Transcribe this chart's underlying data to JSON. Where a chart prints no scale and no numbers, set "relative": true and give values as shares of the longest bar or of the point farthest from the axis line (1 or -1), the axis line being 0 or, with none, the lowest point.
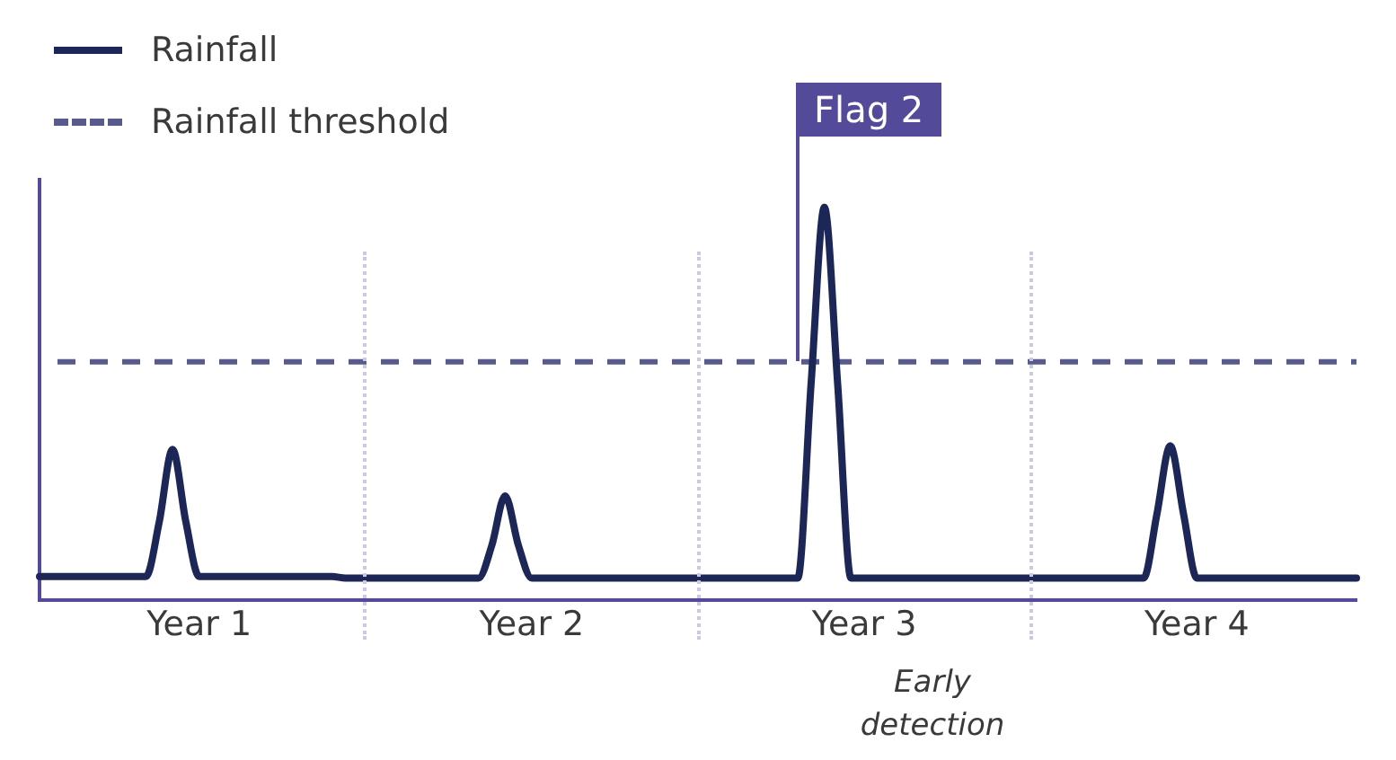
{
  "chart_data": {
    "type": "line",
    "relative": true,
    "legend": "top left",
    "categories": [
      null,
      null,
      null,
      null,
      null,
      null,
      null,
      null,
      null,
      null,
      null,
      null,
      "Year 1",
      null,
      null,
      null,
      null,
      null,
      null,
      null,
      null,
      null,
      null,
      null,
      null,
      null,
      null,
      null,
      null,
      null,
      null,
      null,
      null,
      null,
      null,
      null,
      null,
      "Year 2",
      null,
      null,
      null,
      null,
      null,
      null,
      null,
      null,
      null,
      null,
      null,
      null,
      null,
      null,
      null,
      null,
      null,
      null,
      null,
      null,
      null,
      null,
      null,
      null,
      "Year 3",
      null,
      null,
      null,
      null,
      null,
      null,
      null,
      null,
      null,
      null,
      null,
      null,
      null,
      null,
      null,
      null,
      null,
      null,
      null,
      null,
      null,
      null,
      null,
      null,
      "Year 4",
      null,
      null,
      null,
      null,
      null,
      null,
      null,
      null,
      null,
      null,
      null,
      null
    ],
    "series": [
      {
        "name": "Rainfall",
        "color": "#1c2757",
        "values": [
          0.061,
          0.061,
          0.061,
          0.061,
          0.061,
          0.061,
          0.061,
          0.061,
          0.061,
          0.2,
          0.384,
          0.2,
          0.061,
          0.061,
          0.061,
          0.061,
          0.061,
          0.061,
          0.061,
          0.061,
          0.061,
          0.061,
          0.061,
          0.057,
          0.057,
          0.057,
          0.057,
          0.057,
          0.057,
          0.057,
          0.057,
          0.057,
          0.057,
          0.057,
          0.14,
          0.266,
          0.14,
          0.057,
          0.057,
          0.057,
          0.057,
          0.057,
          0.057,
          0.057,
          0.057,
          0.057,
          0.057,
          0.057,
          0.057,
          0.057,
          0.057,
          0.057,
          0.057,
          0.057,
          0.057,
          0.057,
          0.057,
          0.057,
          0.55,
          1,
          0.55,
          0.057,
          0.057,
          0.057,
          0.057,
          0.057,
          0.057,
          0.057,
          0.057,
          0.057,
          0.057,
          0.057,
          0.057,
          0.057,
          0.057,
          0.057,
          0.057,
          0.057,
          0.057,
          0.057,
          0.057,
          0.057,
          0.057,
          0.057,
          0.22,
          0.393,
          0.22,
          0.057,
          0.057,
          0.057,
          0.057,
          0.057,
          0.057,
          0.057,
          0.057,
          0.057,
          0.057,
          0.057,
          0.057,
          0.057
        ]
      }
    ],
    "ref_lines": [
      {
        "axis": "y",
        "value": 0.607,
        "label": "Rainfall threshold",
        "color": "#575a8a",
        "line_style": "dashed"
      }
    ],
    "annotations": [
      "Flag 2",
      "Early detection"
    ]
  }
}
